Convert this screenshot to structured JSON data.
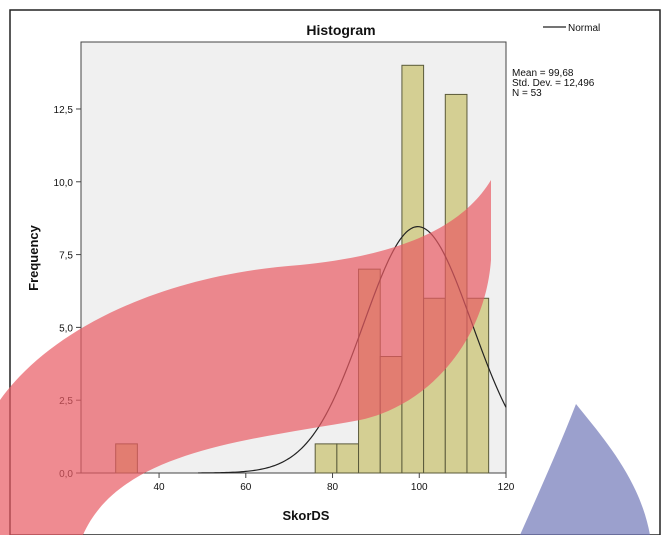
{
  "chart_data": {
    "type": "bar",
    "title": "Histogram",
    "xlabel": "SkorDS",
    "ylabel": "Frequency",
    "xlim": [
      22,
      120
    ],
    "ylim": [
      0,
      14.8
    ],
    "x_ticks": [
      {
        "value": 40,
        "label": "40"
      },
      {
        "value": 60,
        "label": "60"
      },
      {
        "value": 80,
        "label": "80"
      },
      {
        "value": 100,
        "label": "100"
      },
      {
        "value": 120,
        "label": "120"
      }
    ],
    "y_ticks": [
      {
        "value": 0,
        "label": "0,0"
      },
      {
        "value": 2.5,
        "label": "2,5"
      },
      {
        "value": 5,
        "label": "5,0"
      },
      {
        "value": 7.5,
        "label": "7,5"
      },
      {
        "value": 10,
        "label": "10,0"
      },
      {
        "value": 12.5,
        "label": "12,5"
      }
    ],
    "bins": [
      {
        "from": 30,
        "to": 35,
        "count": 1
      },
      {
        "from": 76,
        "to": 81,
        "count": 1
      },
      {
        "from": 81,
        "to": 86,
        "count": 1
      },
      {
        "from": 86,
        "to": 91,
        "count": 7
      },
      {
        "from": 91,
        "to": 96,
        "count": 4
      },
      {
        "from": 96,
        "to": 101,
        "count": 14
      },
      {
        "from": 101,
        "to": 106,
        "count": 6
      },
      {
        "from": 106,
        "to": 111,
        "count": 13
      },
      {
        "from": 111,
        "to": 116,
        "count": 6
      }
    ],
    "normal_curve": {
      "name": "Normal",
      "mean": 99.68,
      "sd": 12.496,
      "n": 53,
      "bin_width": 5
    },
    "stats": [
      "Mean = 99,68",
      "Std. Dev. = 12,496",
      "N = 53"
    ],
    "legend": {
      "position": "top-right",
      "entries": [
        "Normal"
      ]
    },
    "grid": false,
    "colors": {
      "bar_fill": "#d4cf93",
      "bar_stroke": "#5a5a3a",
      "plot_bg": "#f0f0f0",
      "curve": "#222222"
    }
  },
  "overlay": {
    "ribbon_color": "#e85a63",
    "wedge_color": "#7078b8"
  }
}
